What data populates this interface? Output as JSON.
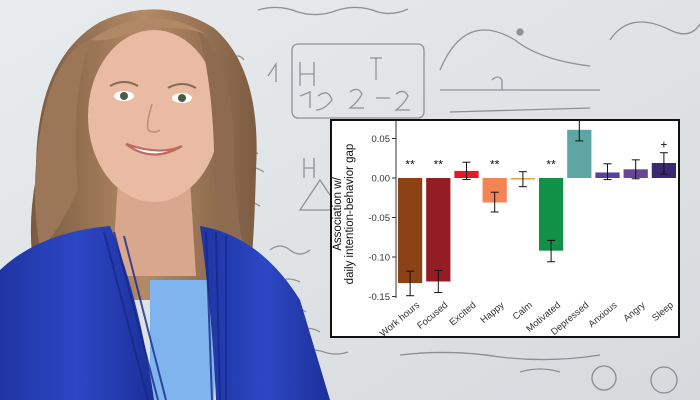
{
  "chart_data": {
    "type": "bar",
    "ylabel_lines": [
      "Association w/",
      "daily intention-behavior gap"
    ],
    "xlabel": "",
    "ylim": [
      -0.16,
      0.075
    ],
    "yticks": [
      0.05,
      0.0,
      -0.05,
      -0.1,
      -0.15
    ],
    "ytick_labels": [
      "0.05",
      "0.00",
      "-0.05",
      "-0.10",
      "-0.15"
    ],
    "grid": false,
    "categories": [
      "Work hours",
      "Focused",
      "Excited",
      "Happy",
      "Calm",
      "Motivated",
      "Depressed",
      "Anxious",
      "Angry",
      "Sleep"
    ],
    "values": [
      -0.133,
      -0.131,
      0.009,
      -0.031,
      -0.002,
      -0.092,
      0.061,
      0.007,
      0.011,
      0.019
    ],
    "error_low": [
      -0.149,
      -0.145,
      -0.002,
      -0.043,
      -0.011,
      -0.106,
      0.047,
      -0.002,
      -0.001,
      0.005
    ],
    "error_high": [
      -0.118,
      -0.117,
      0.02,
      -0.018,
      0.008,
      -0.079,
      0.075,
      0.018,
      0.023,
      0.032
    ],
    "significance": [
      "**",
      "**",
      "",
      "**",
      "",
      "**",
      "",
      "",
      "",
      "+"
    ],
    "colors": [
      "#8c4215",
      "#931d22",
      "#e21b22",
      "#f28456",
      "#e9a33c",
      "#119048",
      "#5ea5a3",
      "#5a4298",
      "#6a4696",
      "#3a2870"
    ]
  },
  "scene": {
    "background_colors": {
      "whiteboard": "#e4e8ea",
      "cardigan": "#263fb5",
      "shirt": "#7fb4ee",
      "hair": "#9a7658",
      "skin": "#e6b9a0"
    }
  }
}
